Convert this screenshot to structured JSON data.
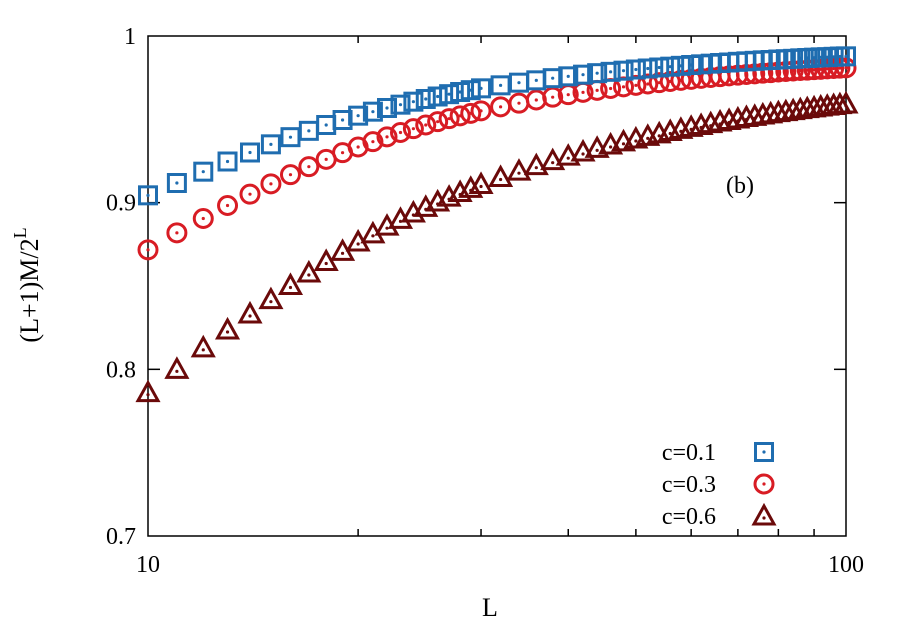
{
  "chart_data": {
    "type": "scatter",
    "title": "",
    "xlabel": "L",
    "ylabel_base": "(L+1)M/2",
    "ylabel_sup": "L",
    "x_scale": "log",
    "xlim": [
      10,
      100
    ],
    "ylim": [
      0.7,
      1.0
    ],
    "x_ticks": [
      10,
      100
    ],
    "x_tick_labels": [
      "10",
      "100"
    ],
    "y_ticks": [
      0.7,
      0.8,
      0.9,
      1.0
    ],
    "y_tick_labels": [
      "0.7",
      "0.8",
      "0.9",
      "1"
    ],
    "grid": false,
    "annotation": "(b)",
    "legend_position": "bottom-right",
    "series": [
      {
        "name": "c=0.1",
        "marker": "square",
        "color": "#1f6db0",
        "x": [
          10,
          11,
          12,
          13,
          14,
          15,
          16,
          17,
          18,
          19,
          20,
          21,
          22,
          23,
          24,
          25,
          26,
          27,
          28,
          29,
          30,
          32,
          34,
          36,
          38,
          40,
          42,
          44,
          46,
          48,
          50,
          52,
          54,
          56,
          58,
          60,
          62,
          64,
          66,
          68,
          70,
          72,
          74,
          76,
          78,
          80,
          82,
          84,
          86,
          88,
          90,
          92,
          94,
          96,
          98,
          100
        ],
        "y": [
          0.9044,
          0.9118,
          0.9186,
          0.9247,
          0.9301,
          0.935,
          0.9393,
          0.9431,
          0.9466,
          0.9496,
          0.9522,
          0.9546,
          0.9568,
          0.9588,
          0.9606,
          0.9622,
          0.9637,
          0.9651,
          0.9664,
          0.9675,
          0.9686,
          0.9704,
          0.972,
          0.9734,
          0.9747,
          0.9758,
          0.9768,
          0.9777,
          0.9785,
          0.9792,
          0.9799,
          0.9805,
          0.9811,
          0.9816,
          0.9821,
          0.9826,
          0.983,
          0.9834,
          0.9838,
          0.9841,
          0.9845,
          0.9848,
          0.9851,
          0.9854,
          0.9856,
          0.9859,
          0.9861,
          0.9863,
          0.9866,
          0.9868,
          0.987,
          0.9872,
          0.9873,
          0.9875,
          0.9877,
          0.9878
        ]
      },
      {
        "name": "c=0.3",
        "marker": "circle",
        "color": "#d81c24",
        "x": [
          10,
          11,
          12,
          13,
          14,
          15,
          16,
          17,
          18,
          19,
          20,
          21,
          22,
          23,
          24,
          25,
          26,
          27,
          28,
          29,
          30,
          32,
          34,
          36,
          38,
          40,
          42,
          44,
          46,
          48,
          50,
          52,
          54,
          56,
          58,
          60,
          62,
          64,
          66,
          68,
          70,
          72,
          74,
          76,
          78,
          80,
          82,
          84,
          86,
          88,
          90,
          92,
          94,
          96,
          98,
          100
        ],
        "y": [
          0.8717,
          0.8819,
          0.8905,
          0.8983,
          0.9051,
          0.9113,
          0.9168,
          0.9216,
          0.926,
          0.93,
          0.9334,
          0.9366,
          0.9395,
          0.9421,
          0.9444,
          0.9466,
          0.9486,
          0.9504,
          0.9521,
          0.9536,
          0.9551,
          0.9575,
          0.9597,
          0.9616,
          0.9633,
          0.9648,
          0.9662,
          0.9674,
          0.9685,
          0.9695,
          0.9704,
          0.9712,
          0.972,
          0.9727,
          0.9734,
          0.974,
          0.9746,
          0.9751,
          0.9756,
          0.9761,
          0.9765,
          0.9769,
          0.9773,
          0.9777,
          0.978,
          0.9784,
          0.9787,
          0.979,
          0.9793,
          0.9795,
          0.9798,
          0.98,
          0.9803,
          0.9805,
          0.9807,
          0.9809
        ]
      },
      {
        "name": "c=0.6",
        "marker": "triangle",
        "color": "#6b0a0a",
        "x": [
          10,
          11,
          12,
          13,
          14,
          15,
          16,
          17,
          18,
          19,
          20,
          21,
          22,
          23,
          24,
          25,
          26,
          27,
          28,
          29,
          30,
          32,
          34,
          36,
          38,
          40,
          42,
          44,
          46,
          48,
          50,
          52,
          54,
          56,
          58,
          60,
          62,
          64,
          66,
          68,
          70,
          72,
          74,
          76,
          78,
          80,
          82,
          84,
          86,
          88,
          90,
          92,
          94,
          96,
          98,
          100
        ],
        "y": [
          0.786,
          0.8,
          0.8129,
          0.8236,
          0.8332,
          0.8418,
          0.8503,
          0.8578,
          0.8647,
          0.8708,
          0.8764,
          0.8813,
          0.8859,
          0.89,
          0.8938,
          0.8972,
          0.9004,
          0.9033,
          0.9061,
          0.9086,
          0.9109,
          0.9151,
          0.9189,
          0.9222,
          0.9252,
          0.9279,
          0.9304,
          0.9326,
          0.9346,
          0.9365,
          0.9382,
          0.9398,
          0.9413,
          0.9427,
          0.944,
          0.9452,
          0.9463,
          0.9474,
          0.9484,
          0.9493,
          0.9502,
          0.9511,
          0.9518,
          0.9526,
          0.9533,
          0.954,
          0.9546,
          0.9552,
          0.9558,
          0.9564,
          0.9569,
          0.9574,
          0.9579,
          0.9583,
          0.9588,
          0.9592
        ]
      }
    ]
  }
}
